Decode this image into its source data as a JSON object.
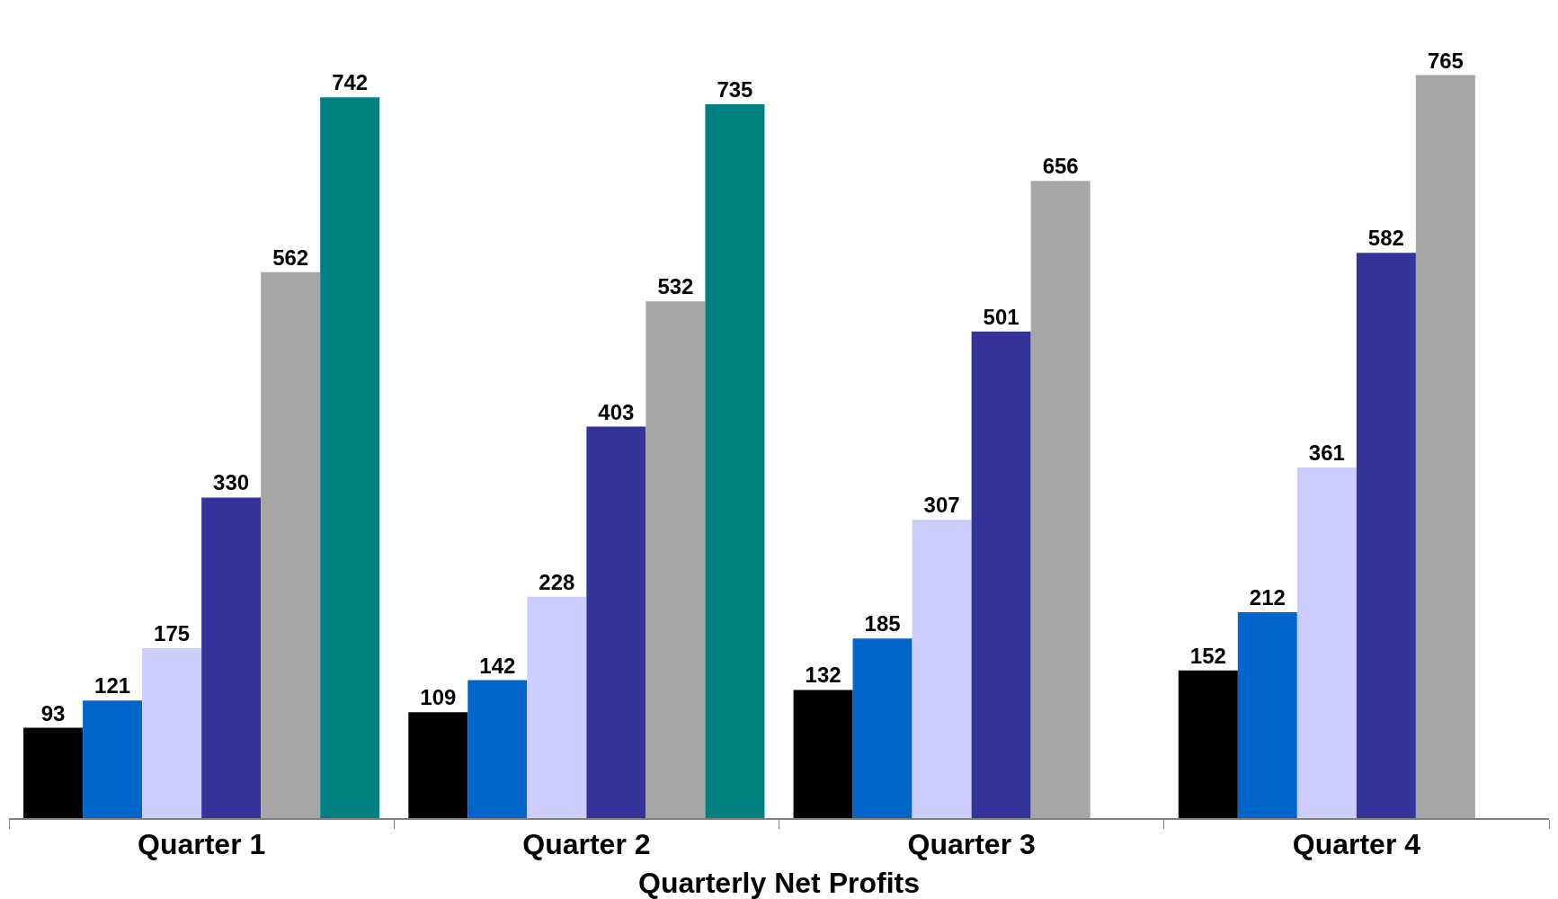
{
  "chart_data": {
    "type": "bar",
    "xlabel": "Quarterly Net Profits",
    "categories": [
      "Quarter 1",
      "Quarter 2",
      "Quarter 3",
      "Quarter 4"
    ],
    "series": [
      {
        "color": "#000000",
        "values": [
          93,
          109,
          132,
          152
        ]
      },
      {
        "color": "#0066cc",
        "values": [
          121,
          142,
          185,
          212
        ]
      },
      {
        "color": "#ccccff",
        "values": [
          175,
          228,
          307,
          361
        ]
      },
      {
        "color": "#333399",
        "values": [
          330,
          403,
          501,
          582
        ]
      },
      {
        "color": "#a6a6a6",
        "values": [
          562,
          532,
          656,
          765
        ]
      },
      {
        "color": "#008080",
        "values": [
          742,
          735,
          null,
          null
        ]
      }
    ],
    "data_labels": true
  }
}
